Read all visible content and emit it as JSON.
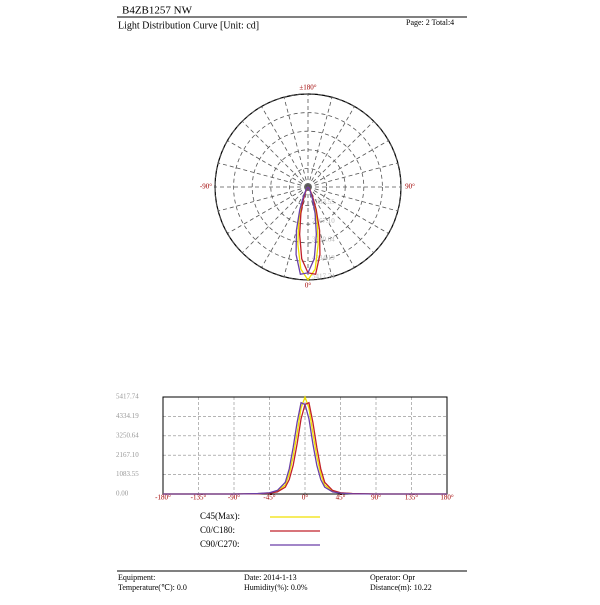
{
  "header": {
    "title": "B4ZB1257 NW",
    "subtitle": "Light Distribution Curve [Unit: cd]",
    "page": "Page: 2  Total:4"
  },
  "footer": {
    "equipment": "Equipment:",
    "temperature": "Temperature(℃): 0.0",
    "date": "Date: 2014-1-13",
    "humidity": "Humidity(%): 0.0%",
    "operator": "Operator: Opr",
    "distance": "Distance(m): 10.22"
  },
  "chart_data": [
    {
      "type": "polar",
      "rlim": [
        0,
        5417.74
      ],
      "rticks": [
        1083.55,
        {
          "value": 2167.1,
          "label": "2167.10"
        },
        3250.64,
        4334.19,
        5417.74
      ],
      "angle_ticks": [
        {
          "value": 180,
          "label": "±180°"
        },
        {
          "value": -90,
          "label": "-90°"
        },
        {
          "value": 90,
          "label": "90°"
        },
        {
          "value": 0,
          "label": "0°"
        }
      ],
      "spoke_step": 15
    },
    {
      "type": "line",
      "x": [
        -180,
        -90,
        -60,
        -45,
        -35,
        -25,
        -20,
        -15,
        -10,
        -5,
        0,
        5,
        10,
        15,
        20,
        25,
        35,
        45,
        60,
        90,
        180
      ],
      "series": [
        {
          "name": "C45(Max):",
          "color": "#f0e000",
          "values": [
            0,
            0,
            20,
            60,
            150,
            500,
            1100,
            2100,
            3400,
            4800,
            5417.74,
            4800,
            3400,
            2100,
            1100,
            500,
            150,
            60,
            20,
            0,
            0
          ]
        },
        {
          "name": "C0/C180:",
          "color": "#c0202a",
          "values": [
            0,
            0,
            15,
            50,
            120,
            380,
            800,
            1600,
            2800,
            4200,
            5000,
            5100,
            4000,
            2600,
            1400,
            650,
            200,
            70,
            25,
            0,
            0
          ]
        },
        {
          "name": "C90/C270:",
          "color": "#6a3fa8",
          "values": [
            0,
            0,
            25,
            70,
            200,
            650,
            1400,
            2600,
            4000,
            5100,
            5000,
            4200,
            2800,
            1600,
            800,
            380,
            120,
            50,
            15,
            0,
            0
          ]
        }
      ],
      "xlim": [
        -180,
        180
      ],
      "ylim": [
        0,
        5417.74
      ],
      "xticks": [
        {
          "value": -180,
          "label": "-180°"
        },
        {
          "value": -135,
          "label": "-135°"
        },
        {
          "value": -90,
          "label": "-90°"
        },
        {
          "value": -45,
          "label": "-45°"
        },
        {
          "value": 0,
          "label": "0°"
        },
        {
          "value": 45,
          "label": "45°"
        },
        {
          "value": 90,
          "label": "90°"
        },
        {
          "value": 135,
          "label": "135°"
        },
        {
          "value": 180,
          "label": "180°"
        }
      ],
      "yticks": [
        {
          "value": 0,
          "label": "0.00"
        },
        1083.55,
        {
          "value": 2167.1,
          "label": "2167.10"
        },
        3250.64,
        4334.19,
        5417.74
      ],
      "grid": true
    }
  ]
}
